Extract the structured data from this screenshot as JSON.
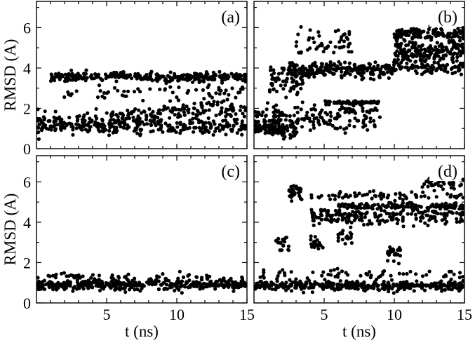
{
  "chart_data": [
    {
      "type": "scatter",
      "panel_label": "(a)",
      "xlabel": "",
      "ylabel": "RMSD (A)",
      "xlim": [
        0,
        15
      ],
      "ylim": [
        0,
        7.3
      ],
      "xticks": [
        5,
        10,
        15
      ],
      "yticks": [
        0,
        2,
        4,
        6
      ],
      "xtick_labels": [
        "",
        "",
        ""
      ],
      "ytick_labels": [
        "0",
        "2",
        "4",
        "6"
      ],
      "clusters": [
        {
          "x": [
            0,
            15
          ],
          "y_center": 1.1,
          "spread": 0.3,
          "count": 240
        },
        {
          "x": [
            0,
            5
          ],
          "y_center": 1.3,
          "spread": 0.4,
          "count": 60
        },
        {
          "x": [
            5,
            9
          ],
          "y_center": 1.5,
          "spread": 0.45,
          "count": 80
        },
        {
          "x": [
            9,
            15
          ],
          "y_center": 1.9,
          "spread": 0.35,
          "count": 100
        },
        {
          "x": [
            1,
            15
          ],
          "y_center": 3.55,
          "spread": 0.18,
          "count": 320
        },
        {
          "x": [
            1,
            15
          ],
          "y_center": 2.8,
          "spread": 0.35,
          "count": 60
        }
      ]
    },
    {
      "type": "scatter",
      "panel_label": "(b)",
      "xlabel": "",
      "ylabel": "",
      "xlim": [
        0,
        15
      ],
      "ylim": [
        0,
        7.3
      ],
      "xticks": [
        5,
        10,
        15
      ],
      "yticks": [
        0,
        2,
        4,
        6
      ],
      "xtick_labels": [
        "",
        "",
        ""
      ],
      "ytick_labels": [
        "",
        "",
        "",
        ""
      ],
      "clusters": [
        {
          "x": [
            0,
            3
          ],
          "y_center": 1.0,
          "spread": 0.3,
          "count": 100
        },
        {
          "x": [
            0,
            9
          ],
          "y_center": 1.5,
          "spread": 0.6,
          "count": 170
        },
        {
          "x": [
            1,
            3.5
          ],
          "y_center": 3.3,
          "spread": 0.7,
          "count": 70
        },
        {
          "x": [
            2.5,
            10
          ],
          "y_center": 3.9,
          "spread": 0.3,
          "count": 240
        },
        {
          "x": [
            5,
            9
          ],
          "y_center": 2.3,
          "spread": 0.06,
          "count": 70
        },
        {
          "x": [
            3,
            7
          ],
          "y_center": 5.2,
          "spread": 0.6,
          "count": 50
        },
        {
          "x": [
            10,
            15
          ],
          "y_center": 4.8,
          "spread": 0.55,
          "count": 200
        },
        {
          "x": [
            10,
            15
          ],
          "y_center": 5.7,
          "spread": 0.25,
          "count": 120
        },
        {
          "x": [
            10,
            15
          ],
          "y_center": 4.0,
          "spread": 0.3,
          "count": 80
        }
      ]
    },
    {
      "type": "scatter",
      "panel_label": "(c)",
      "xlabel": "t (ns)",
      "ylabel": "RMSD (A)",
      "xlim": [
        0,
        15
      ],
      "ylim": [
        0,
        7.3
      ],
      "xticks": [
        5,
        10,
        15
      ],
      "yticks": [
        0,
        2,
        4,
        6
      ],
      "xtick_labels": [
        "5",
        "10",
        "15"
      ],
      "ytick_labels": [
        "0",
        "2",
        "4",
        "6"
      ],
      "clusters": [
        {
          "x": [
            0,
            15
          ],
          "y_center": 0.9,
          "spread": 0.2,
          "count": 420
        },
        {
          "x": [
            0,
            15
          ],
          "y_center": 1.3,
          "spread": 0.15,
          "count": 60
        }
      ]
    },
    {
      "type": "scatter",
      "panel_label": "(d)",
      "xlabel": "t (ns)",
      "ylabel": "",
      "xlim": [
        0,
        15
      ],
      "ylim": [
        0,
        7.3
      ],
      "xticks": [
        5,
        10,
        15
      ],
      "yticks": [
        0,
        2,
        4,
        6
      ],
      "xtick_labels": [
        "5",
        "10",
        "15"
      ],
      "ytick_labels": [
        "",
        "",
        "",
        ""
      ],
      "clusters": [
        {
          "x": [
            0,
            15
          ],
          "y_center": 0.85,
          "spread": 0.2,
          "count": 380
        },
        {
          "x": [
            0,
            15
          ],
          "y_center": 1.4,
          "spread": 0.25,
          "count": 60
        },
        {
          "x": [
            4,
            15
          ],
          "y_center": 4.3,
          "spread": 0.35,
          "count": 200
        },
        {
          "x": [
            6,
            15
          ],
          "y_center": 4.8,
          "spread": 0.12,
          "count": 150
        },
        {
          "x": [
            4,
            15
          ],
          "y_center": 5.3,
          "spread": 0.2,
          "count": 70
        },
        {
          "x": [
            12,
            15
          ],
          "y_center": 6.0,
          "spread": 0.35,
          "count": 40
        },
        {
          "x": [
            2.5,
            3.5
          ],
          "y_center": 5.5,
          "spread": 0.3,
          "count": 30
        },
        {
          "x": [
            4,
            5
          ],
          "y_center": 2.9,
          "spread": 0.3,
          "count": 25
        },
        {
          "x": [
            9.5,
            10.5
          ],
          "y_center": 2.5,
          "spread": 0.3,
          "count": 25
        },
        {
          "x": [
            1.5,
            2.5
          ],
          "y_center": 2.9,
          "spread": 0.35,
          "count": 20
        },
        {
          "x": [
            6,
            7
          ],
          "y_center": 3.3,
          "spread": 0.3,
          "count": 20
        }
      ]
    }
  ]
}
